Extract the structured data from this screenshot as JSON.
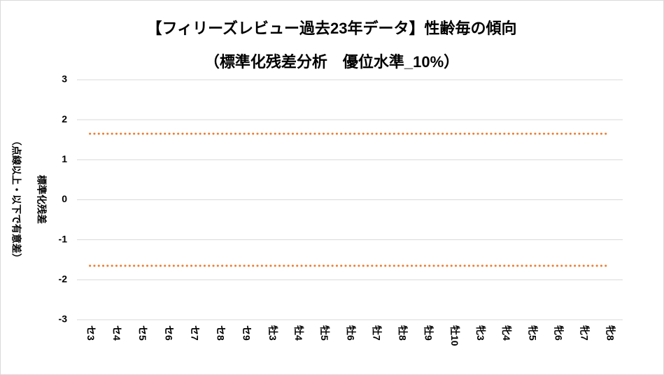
{
  "chart_data": {
    "type": "line",
    "title": "【フィリーズレビュー過去23年データ】性齢毎の傾向",
    "subtitle": "（標準化残差分析　優位水準_10%）",
    "y_label": "標準化残差",
    "y_label_note": "（点線以上・以下で有意差）",
    "categories": [
      "セ3",
      "セ4",
      "セ5",
      "セ6",
      "セ7",
      "セ8",
      "セ9",
      "牡3",
      "牡4",
      "牡5",
      "牡6",
      "牡7",
      "牡8",
      "牡9",
      "牡10",
      "牝3",
      "牝4",
      "牝5",
      "牝6",
      "牝7",
      "牝8"
    ],
    "series": [
      {
        "color": "#ed7d31",
        "style": "dotted",
        "values": [
          1.65,
          1.65,
          1.65,
          1.65,
          1.65,
          1.65,
          1.65,
          1.65,
          1.65,
          1.65,
          1.65,
          1.65,
          1.65,
          1.65,
          1.65,
          1.65,
          1.65,
          1.65,
          1.65,
          1.65,
          1.65
        ]
      },
      {
        "color": "#ed7d31",
        "style": "dotted",
        "values": [
          -1.65,
          -1.65,
          -1.65,
          -1.65,
          -1.65,
          -1.65,
          -1.65,
          -1.65,
          -1.65,
          -1.65,
          -1.65,
          -1.65,
          -1.65,
          -1.65,
          -1.65,
          -1.65,
          -1.65,
          -1.65,
          -1.65,
          -1.65,
          -1.65
        ]
      }
    ],
    "ylim": [
      -3,
      3
    ],
    "yticks": [
      -3,
      -2,
      -1,
      0,
      1,
      2,
      3
    ],
    "grid": true
  }
}
